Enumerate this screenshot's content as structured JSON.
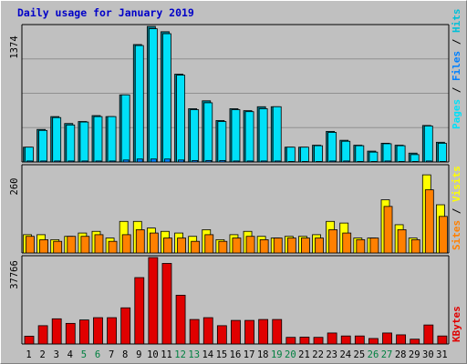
{
  "title": "Daily usage for January 2019",
  "colors": {
    "hits": "#00c0d8",
    "hits_dark": "#007888",
    "files": "#0080ff",
    "files_dark": "#004080",
    "pages": "#00e0f8",
    "sites": "#ff8000",
    "visits": "#ffff00",
    "kbytes": "#e00000",
    "weekend": "#008040",
    "weekday": "#000000",
    "plot_bg": "#c0c0c0",
    "gridline": "#909090"
  },
  "legend": {
    "top": {
      "pages": "Pages",
      "files": "Files",
      "hits": "Hits",
      "sep": " / "
    },
    "mid": {
      "sites": "Sites",
      "visits": "Visits",
      "sep": " / "
    },
    "bot": {
      "kbytes": "KBytes"
    }
  },
  "chart_data": {
    "type": "bar",
    "title": "Daily usage for January 2019",
    "x": [
      "1",
      "2",
      "3",
      "4",
      "5",
      "6",
      "7",
      "8",
      "9",
      "10",
      "11",
      "12",
      "13",
      "14",
      "15",
      "16",
      "17",
      "18",
      "19",
      "20",
      "21",
      "22",
      "23",
      "24",
      "25",
      "26",
      "27",
      "28",
      "29",
      "30",
      "31"
    ],
    "weekend_days": [
      "5",
      "6",
      "12",
      "13",
      "19",
      "20",
      "26",
      "27"
    ],
    "panels": [
      {
        "name": "hits_files_pages",
        "ymax_label": "1374",
        "ylim": [
          0,
          1374
        ],
        "series": [
          {
            "name": "Hits",
            "values": [
              150,
              330,
              460,
              390,
              410,
              470,
              460,
              680,
              1190,
              1374,
              1320,
              890,
              540,
              620,
              420,
              540,
              520,
              560,
              560,
              150,
              150,
              170,
              310,
              220,
              170,
              110,
              190,
              170,
              90,
              370,
              200
            ]
          },
          {
            "name": "Files",
            "values": [
              150,
              320,
              450,
              375,
              405,
              460,
              460,
              680,
              1180,
              1350,
              1300,
              880,
              530,
              600,
              410,
              530,
              510,
              540,
              560,
              150,
              150,
              165,
              300,
              210,
              165,
              100,
              185,
              165,
              75,
              365,
              190
            ]
          },
          {
            "name": "Pages",
            "values": [
              10,
              10,
              10,
              10,
              10,
              10,
              10,
              20,
              30,
              30,
              30,
              20,
              15,
              15,
              15,
              10,
              10,
              10,
              10,
              5,
              5,
              5,
              10,
              10,
              5,
              5,
              10,
              5,
              5,
              10,
              5
            ]
          }
        ]
      },
      {
        "name": "visits_sites",
        "ymax_label": "260",
        "ylim": [
          0,
          260
        ],
        "series": [
          {
            "name": "Visits",
            "values": [
              55,
              55,
              40,
              50,
              60,
              65,
              45,
              95,
              95,
              75,
              65,
              60,
              50,
              70,
              40,
              55,
              65,
              50,
              45,
              50,
              50,
              55,
              95,
              90,
              45,
              45,
              160,
              85,
              45,
              235,
              145
            ]
          },
          {
            "name": "Sites",
            "values": [
              50,
              40,
              35,
              50,
              50,
              55,
              35,
              55,
              70,
              60,
              45,
              45,
              35,
              55,
              35,
              45,
              50,
              40,
              45,
              45,
              45,
              45,
              70,
              60,
              40,
              45,
              140,
              70,
              40,
              190,
              110
            ]
          }
        ]
      },
      {
        "name": "kbytes",
        "ymax_label": "37766",
        "ylim": [
          0,
          37766
        ],
        "series": [
          {
            "name": "KBytes",
            "values": [
              3400,
              8000,
              11000,
              9000,
              10500,
              11500,
              11500,
              15800,
              29000,
              37766,
              35200,
              21300,
              10700,
              11500,
              8000,
              10300,
              10300,
              10700,
              10700,
              2900,
              3000,
              2900,
              4800,
              3500,
              3500,
              2400,
              4800,
              4000,
              2100,
              8300,
              3500
            ]
          }
        ]
      }
    ]
  }
}
